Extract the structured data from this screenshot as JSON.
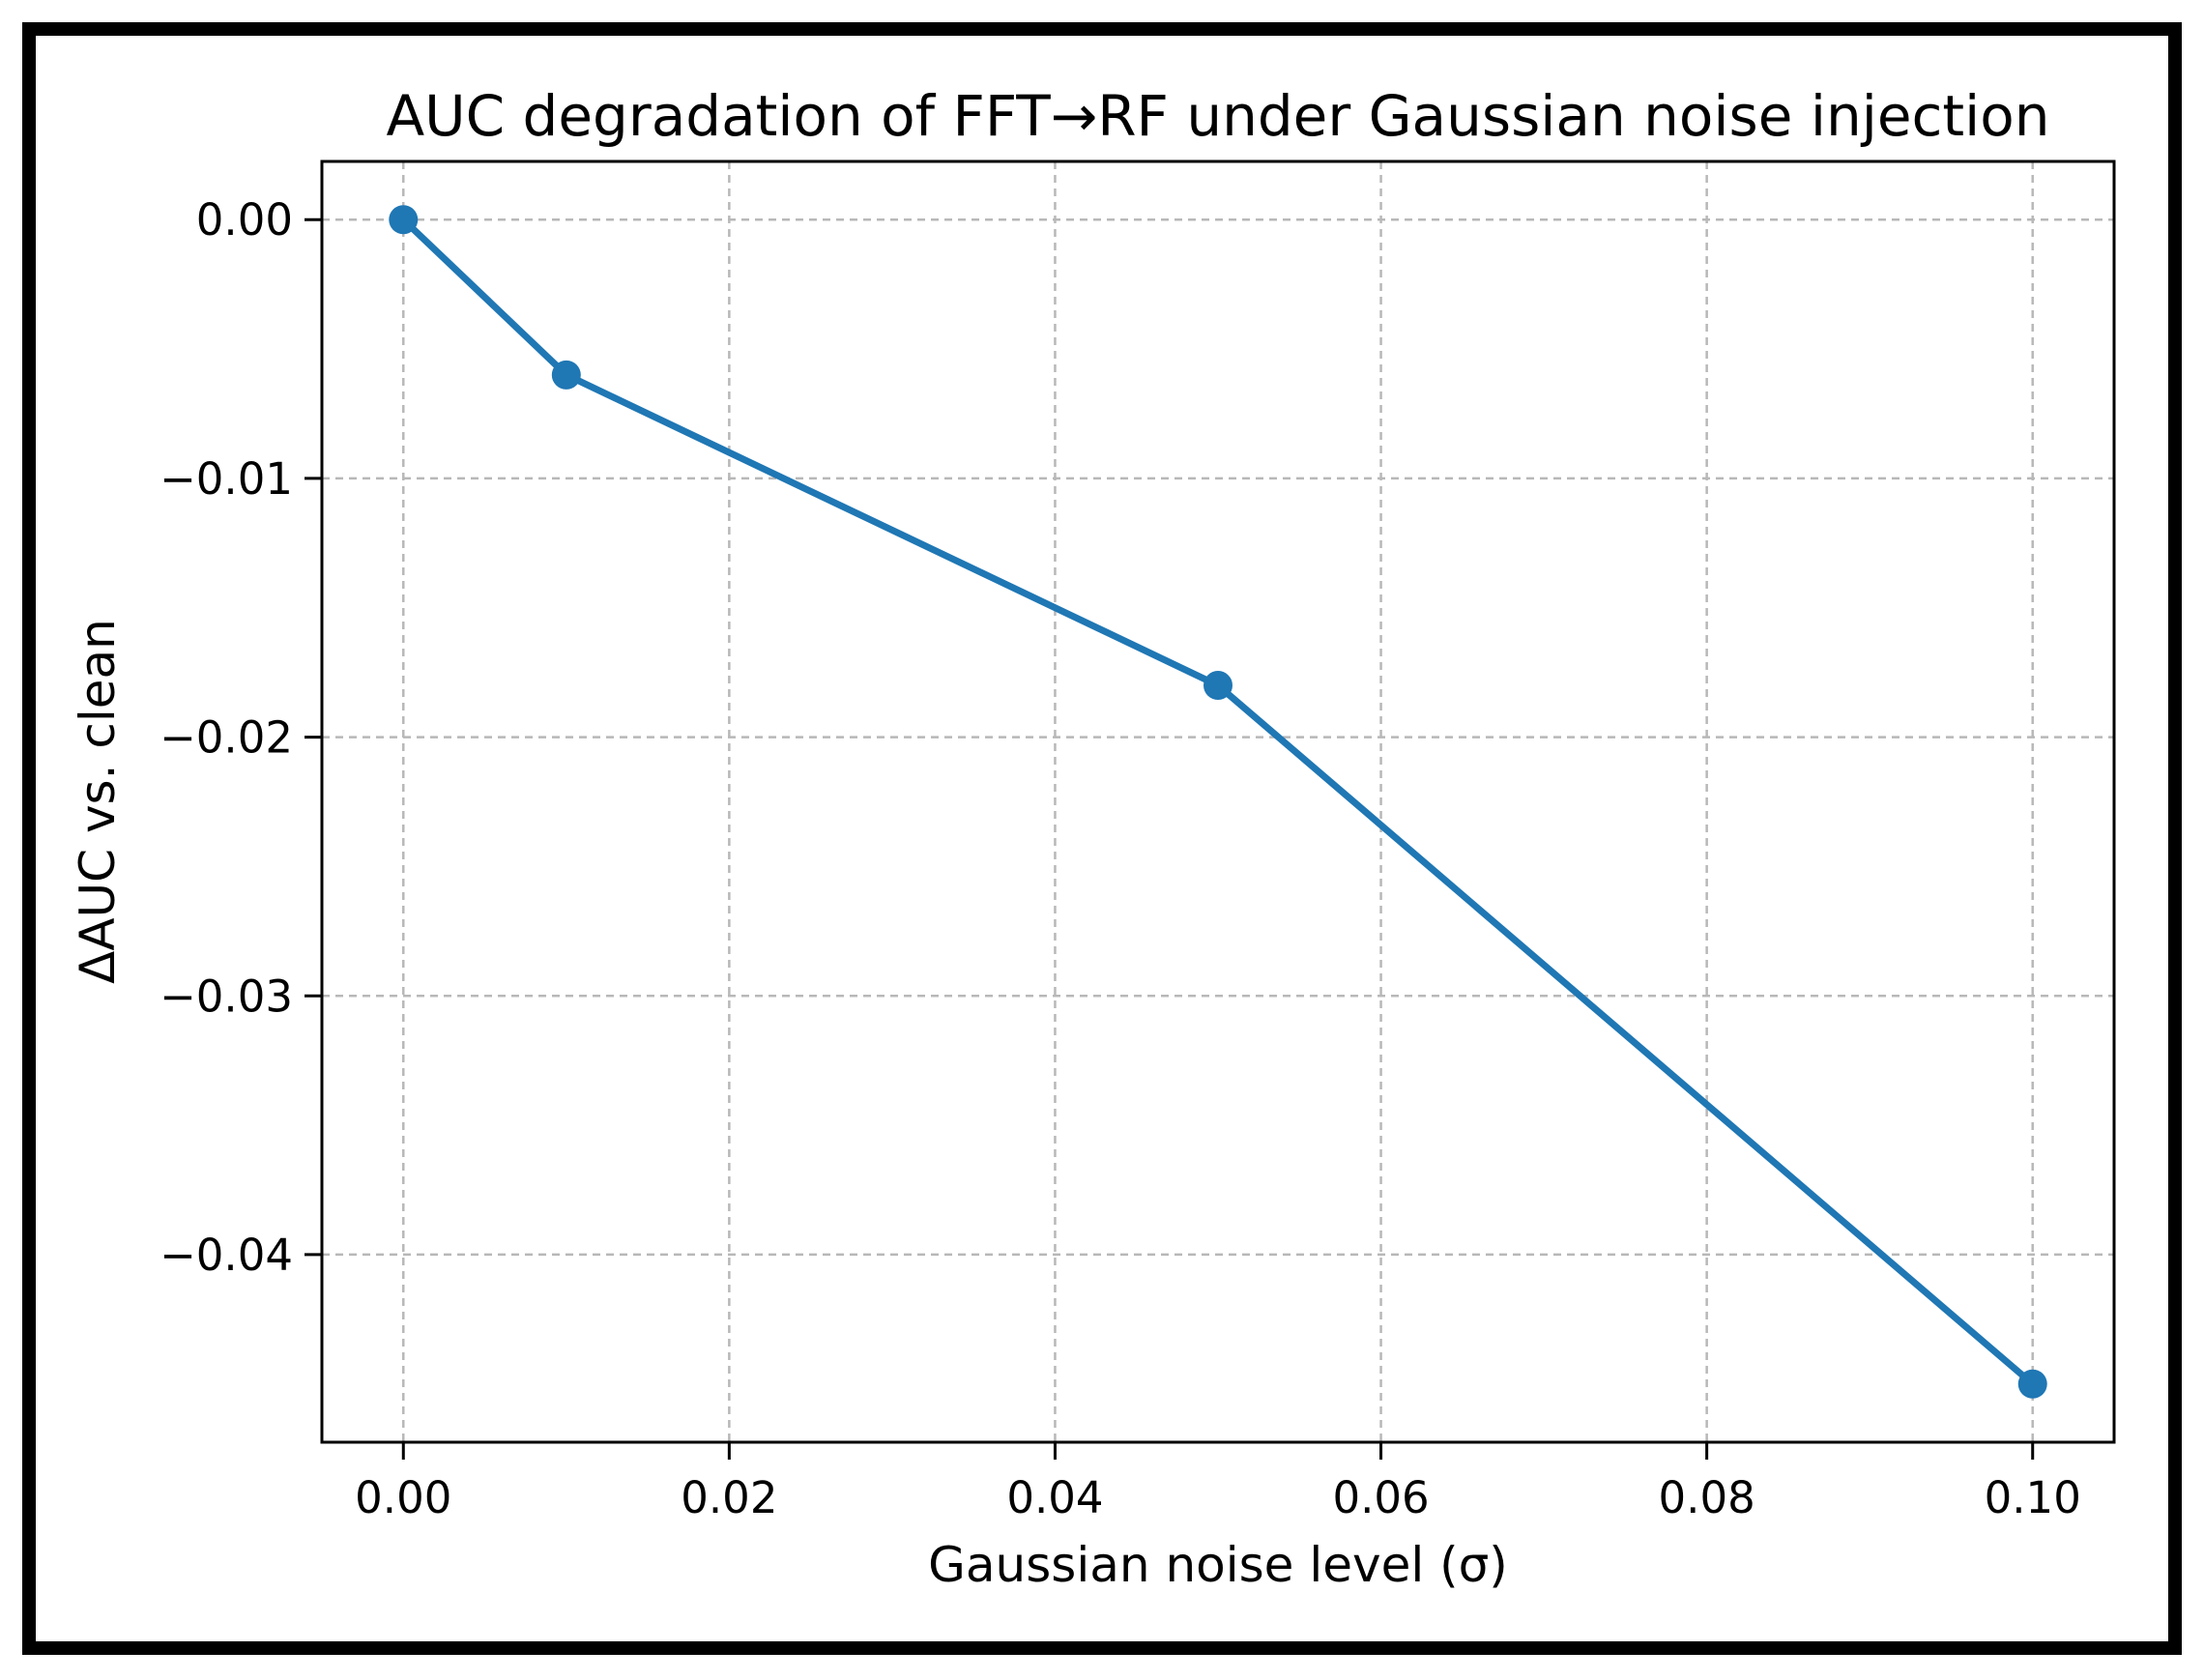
{
  "figure": {
    "background_color": "#ffffff",
    "border_color": "#000000",
    "text_color": "#000000",
    "grid_color": "#b8b8b8"
  },
  "chart_data": {
    "type": "line",
    "title": "AUC degradation of FFT→RF under Gaussian noise injection",
    "xlabel": "Gaussian noise level (σ)",
    "ylabel": "ΔAUC vs. clean",
    "x": [
      0.0,
      0.01,
      0.05,
      0.1
    ],
    "y": [
      0.0,
      -0.006,
      -0.018,
      -0.045
    ],
    "x_ticks": [
      0.0,
      0.02,
      0.04,
      0.06,
      0.08,
      0.1
    ],
    "x_tick_labels": [
      "0.00",
      "0.02",
      "0.04",
      "0.06",
      "0.08",
      "0.10"
    ],
    "y_ticks": [
      0.0,
      -0.01,
      -0.02,
      -0.03,
      -0.04
    ],
    "y_tick_labels": [
      "0.00",
      "−0.01",
      "−0.02",
      "−0.03",
      "−0.04"
    ],
    "xlim": [
      -0.005,
      0.105
    ],
    "ylim": [
      -0.04725,
      0.00225
    ],
    "grid": true,
    "grid_style": "dashed",
    "line_color": "#1f77b4",
    "line_width": 7,
    "marker": "circle",
    "marker_size": 15,
    "legend": "none"
  }
}
